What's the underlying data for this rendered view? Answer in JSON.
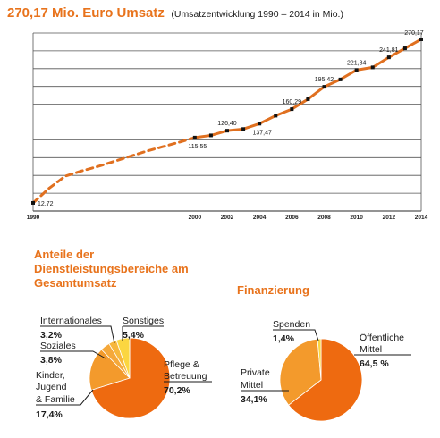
{
  "header": {
    "title": "270,17 Mio. Euro Umsatz",
    "subtitle": "(Umsatzentwicklung 1990 – 2014 in Mio.)"
  },
  "colors": {
    "accent": "#e8731c",
    "line": "#e07020",
    "pie_main": "#ee6a10",
    "pie_mid": "#f39a2c",
    "pie_light": "#f7b73c",
    "pie_yellow": "#fbd640"
  },
  "chart_data": [
    {
      "type": "line",
      "title": "270,17 Mio. Euro Umsatz",
      "subtitle": "(Umsatzentwicklung 1990 – 2014 in Mio.)",
      "xlim": [
        1990,
        2014
      ],
      "ylim": [
        0,
        280
      ],
      "x_ticks": [
        1990,
        2000,
        2002,
        2004,
        2006,
        2008,
        2010,
        2012,
        2014
      ],
      "series": [
        {
          "name": "",
          "style": "dashed",
          "x": [
            1990,
            1991,
            1992,
            1993,
            1994,
            1995,
            1996,
            1997,
            1998,
            1999,
            2000
          ],
          "y": [
            12.72,
            36,
            55,
            63,
            70,
            78,
            86,
            94,
            101,
            108,
            115.55
          ]
        },
        {
          "name": "",
          "style": "solid",
          "x": [
            2000,
            2001,
            2002,
            2003,
            2004,
            2005,
            2006,
            2007,
            2008,
            2009,
            2010,
            2011,
            2012,
            2013,
            2014
          ],
          "y": [
            115.55,
            119,
            126.4,
            129,
            137.47,
            150,
            160.29,
            176,
            195.42,
            207,
            221.84,
            226,
            241.81,
            256,
            270.17
          ]
        }
      ],
      "data_labels": [
        {
          "x": 1990,
          "y": 12.72,
          "text": "12,72"
        },
        {
          "x": 2000,
          "y": 115.55,
          "text": "115,55"
        },
        {
          "x": 2002,
          "y": 126.4,
          "text": "126,40"
        },
        {
          "x": 2004,
          "y": 137.47,
          "text": "137,47"
        },
        {
          "x": 2006,
          "y": 160.29,
          "text": "160,29"
        },
        {
          "x": 2008,
          "y": 195.42,
          "text": "195,42"
        },
        {
          "x": 2010,
          "y": 221.84,
          "text": "221,84"
        },
        {
          "x": 2012,
          "y": 241.81,
          "text": "241,81"
        },
        {
          "x": 2014,
          "y": 270.17,
          "text": "270,17"
        }
      ],
      "grid": true,
      "legend": "none"
    },
    {
      "type": "pie",
      "title": "Anteile der Dienstleistungsbereiche am Gesamtumsatz",
      "slices": [
        {
          "label": "Pflege & Betreuung",
          "value": 70.2,
          "value_text": "70,2%",
          "color": "#ee6a10"
        },
        {
          "label": "Kinder, Jugend & Familie",
          "value": 17.4,
          "value_text": "17,4%",
          "color": "#f39a2c"
        },
        {
          "label": "Soziales",
          "value": 3.8,
          "value_text": "3,8%",
          "color": "#f5a83a"
        },
        {
          "label": "Internationales",
          "value": 3.2,
          "value_text": "3,2%",
          "color": "#f7b73c"
        },
        {
          "label": "Sonstiges",
          "value": 5.4,
          "value_text": "5,4%",
          "color": "#fbd640"
        }
      ]
    },
    {
      "type": "pie",
      "title": "Finanzierung",
      "slices": [
        {
          "label": "Öffentliche Mittel",
          "value": 64.5,
          "value_text": "64,5 %",
          "color": "#ee6a10"
        },
        {
          "label": "Private Mittel",
          "value": 34.1,
          "value_text": "34,1%",
          "color": "#f39a2c"
        },
        {
          "label": "Spenden",
          "value": 1.4,
          "value_text": "1,4%",
          "color": "#fbd640"
        }
      ]
    }
  ]
}
